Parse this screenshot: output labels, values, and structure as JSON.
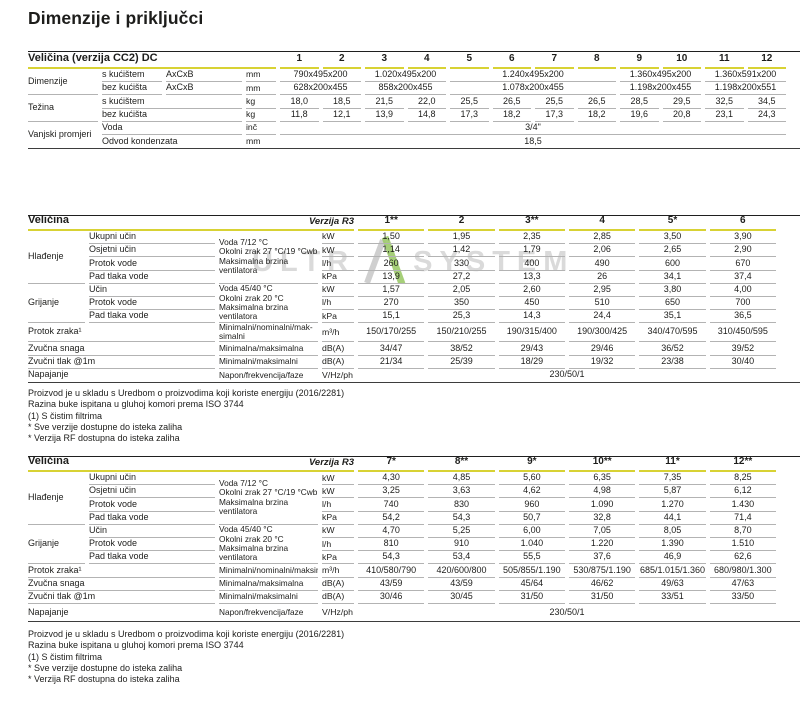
{
  "page_title": "Dimenzije i priključci",
  "colors": {
    "accent_yellow": "#d8d234",
    "watermark_green": "#7db83a",
    "line_gray": "#b3b3b3"
  },
  "watermark": {
    "left": "ULTR",
    "right": "SYSTEM"
  },
  "footnotes": [
    "Proizvod je u skladu s Uredbom o proizvodima koji koriste energiju (2016/2281)",
    "Razina buke ispitana u gluhoj komori prema ISO 3744",
    "(1) S čistim filtrima",
    "* Sve verzije dostupne do isteka zaliha",
    "* Verzija RF dostupna do isteka zaliha"
  ],
  "table_cc2": {
    "title": "Veličina (verzija CC2) DC",
    "columns": [
      "1",
      "2",
      "3",
      "4",
      "5",
      "6",
      "7",
      "8",
      "9",
      "10",
      "11",
      "12"
    ],
    "groups": [
      {
        "label": "Dimenzije",
        "rows": [
          {
            "sub": "s kućištem",
            "spec": "AxCxB",
            "unit": "mm",
            "values": [
              {
                "text": "790x495x200",
                "span": 2
              },
              {
                "text": "1.020x495x200",
                "span": 2
              },
              {
                "text": "1.240x495x200",
                "span": 4
              },
              {
                "text": "1.360x495x200",
                "span": 2
              },
              {
                "text": "1.360x591x200",
                "span": 2
              }
            ]
          },
          {
            "sub": "bez kućišta",
            "spec": "AxCxB",
            "unit": "mm",
            "values": [
              {
                "text": "628x200x455",
                "span": 2
              },
              {
                "text": "858x200x455",
                "span": 2
              },
              {
                "text": "1.078x200x455",
                "span": 4
              },
              {
                "text": "1.198x200x455",
                "span": 2
              },
              {
                "text": "1.198x200x551",
                "span": 2
              }
            ]
          }
        ]
      },
      {
        "label": "Težina",
        "rows": [
          {
            "sub": "s kućištem",
            "unit": "kg",
            "values": [
              "18,0",
              "18,5",
              "21,5",
              "22,0",
              "25,5",
              "26,5",
              "25,5",
              "26,5",
              "28,5",
              "29,5",
              "32,5",
              "34,5"
            ]
          },
          {
            "sub": "bez kućišta",
            "unit": "kg",
            "values": [
              "11,8",
              "12,1",
              "13,9",
              "14,8",
              "17,3",
              "18,2",
              "17,3",
              "18,2",
              "19,6",
              "20,8",
              "23,1",
              "24,3"
            ]
          }
        ]
      },
      {
        "label": "Vanjski promjeri",
        "rows": [
          {
            "sub": "Voda",
            "unit": "inč",
            "values": [
              {
                "text": "3/4\"",
                "span": 12
              }
            ]
          },
          {
            "sub": "Odvod kondenzata",
            "unit": "mm",
            "values": [
              {
                "text": "18,5",
                "span": 12
              }
            ]
          }
        ]
      }
    ]
  },
  "table_r3_small": {
    "title": "Veličina",
    "version_label": "Verzija R3",
    "columns": [
      "1**",
      "2",
      "3**",
      "4",
      "5*",
      "6"
    ],
    "groups": [
      {
        "label": "Hlađenje",
        "condition": [
          "Voda 7/12 °C",
          "Okolni zrak 27 °C/19 °Cwb",
          "Maksimalna brzina ventilatora"
        ],
        "rows": [
          {
            "sub": "Ukupni učin",
            "unit": "kW",
            "values": [
              "1,50",
              "1,95",
              "2,35",
              "2,85",
              "3,50",
              "3,90"
            ]
          },
          {
            "sub": "Osjetni učin",
            "unit": "kW",
            "values": [
              "1,14",
              "1,42",
              "1,79",
              "2,06",
              "2,65",
              "2,90"
            ]
          },
          {
            "sub": "Protok vode",
            "unit": "l/h",
            "values": [
              "260",
              "330",
              "400",
              "490",
              "600",
              "670"
            ]
          },
          {
            "sub": "Pad tlaka vode",
            "unit": "kPa",
            "values": [
              "13,9",
              "27,2",
              "13,3",
              "26",
              "34,1",
              "37,4"
            ]
          }
        ]
      },
      {
        "label": "Grijanje",
        "condition": [
          "Voda 45/40 °C",
          "Okolni zrak 20 °C",
          "Maksimalna brzina ventilatora"
        ],
        "rows": [
          {
            "sub": "Učin",
            "unit": "kW",
            "values": [
              "1,57",
              "2,05",
              "2,60",
              "2,95",
              "3,80",
              "4,00"
            ]
          },
          {
            "sub": "Protok vode",
            "unit": "l/h",
            "values": [
              "270",
              "350",
              "450",
              "510",
              "650",
              "700"
            ]
          },
          {
            "sub": "Pad tlaka vode",
            "unit": "kPa",
            "values": [
              "15,1",
              "25,3",
              "14,3",
              "24,4",
              "35,1",
              "36,5"
            ]
          }
        ]
      },
      {
        "label": "Protok zraka¹",
        "condition": [
          "Minimalni/nominalni/mak-",
          "simalni"
        ],
        "rows": [
          {
            "unit": "m³/h",
            "values": [
              "150/170/255",
              "150/210/255",
              "190/315/400",
              "190/300/425",
              "340/470/595",
              "310/450/595"
            ]
          }
        ]
      },
      {
        "label": "Zvučna snaga",
        "condition": [
          "Minimalna/maksimalna"
        ],
        "rows": [
          {
            "unit": "dB(A)",
            "values": [
              "34/47",
              "38/52",
              "29/43",
              "29/46",
              "36/52",
              "39/52"
            ]
          }
        ]
      },
      {
        "label": "Zvučni tlak @1m",
        "condition": [
          "Minimalni/maksimalni"
        ],
        "rows": [
          {
            "unit": "dB(A)",
            "values": [
              "21/34",
              "25/39",
              "18/29",
              "19/32",
              "23/38",
              "30/40"
            ]
          }
        ]
      },
      {
        "label": "Napajanje",
        "condition": [
          "Napon/frekvencija/faze"
        ],
        "rows": [
          {
            "unit": "V/Hz/ph",
            "values": [
              {
                "text": "230/50/1",
                "span": 6
              }
            ]
          }
        ]
      }
    ]
  },
  "table_r3_large": {
    "title": "Veličina",
    "version_label": "Verzija R3",
    "columns": [
      "7*",
      "8**",
      "9*",
      "10**",
      "11*",
      "12**"
    ],
    "groups": [
      {
        "label": "Hlađenje",
        "condition": [
          "Voda 7/12 °C",
          "Okolni zrak 27 °C/19 °Cwb",
          "Maksimalna brzina ventilatora"
        ],
        "rows": [
          {
            "sub": "Ukupni učin",
            "unit": "kW",
            "values": [
              "4,30",
              "4,85",
              "5,60",
              "6,35",
              "7,35",
              "8,25"
            ]
          },
          {
            "sub": "Osjetni učin",
            "unit": "kW",
            "values": [
              "3,25",
              "3,63",
              "4,62",
              "4,98",
              "5,87",
              "6,12"
            ]
          },
          {
            "sub": "Protok vode",
            "unit": "l/h",
            "values": [
              "740",
              "830",
              "960",
              "1.090",
              "1.270",
              "1.430"
            ]
          },
          {
            "sub": "Pad tlaka vode",
            "unit": "kPa",
            "values": [
              "54,2",
              "54,3",
              "50,7",
              "32,8",
              "44,1",
              "71,4"
            ]
          }
        ]
      },
      {
        "label": "Grijanje",
        "condition": [
          "Voda 45/40 °C",
          "Okolni zrak 20 °C",
          "Maksimalna brzina ventilatora"
        ],
        "rows": [
          {
            "sub": "Učin",
            "unit": "kW",
            "values": [
              "4,70",
              "5,25",
              "6,00",
              "7,05",
              "8,05",
              "8,70"
            ]
          },
          {
            "sub": "Protok vode",
            "unit": "l/h",
            "values": [
              "810",
              "910",
              "1.040",
              "1.220",
              "1.390",
              "1.510"
            ]
          },
          {
            "sub": "Pad tlaka vode",
            "unit": "kPa",
            "values": [
              "54,3",
              "53,4",
              "55,5",
              "37,6",
              "46,9",
              "62,6"
            ]
          }
        ]
      },
      {
        "label": "Protok zraka¹",
        "condition": [
          "Minimalni/nominalni/maksimalni"
        ],
        "rows": [
          {
            "unit": "m³/h",
            "values": [
              "410/580/790",
              "420/600/800",
              "505/855/1.190",
              "530/875/1.190",
              "685/1.015/1.360",
              "680/980/1.300"
            ]
          }
        ]
      },
      {
        "label": "Zvučna snaga",
        "condition": [
          "Minimalna/maksimalna"
        ],
        "rows": [
          {
            "unit": "dB(A)",
            "values": [
              "43/59",
              "43/59",
              "45/64",
              "46/62",
              "49/63",
              "47/63"
            ]
          }
        ]
      },
      {
        "label": "Zvučni tlak @1m",
        "condition": [
          "Minimalni/maksimalni"
        ],
        "rows": [
          {
            "unit": "dB(A)",
            "values": [
              "30/46",
              "30/45",
              "31/50",
              "31/50",
              "33/51",
              "33/50"
            ]
          }
        ]
      },
      {
        "label": "Napajanje",
        "condition": [
          "Napon/frekvencija/faze"
        ],
        "rows": [
          {
            "unit": "V/Hz/ph",
            "values": [
              {
                "text": "230/50/1",
                "span": 6
              }
            ]
          }
        ]
      }
    ]
  }
}
